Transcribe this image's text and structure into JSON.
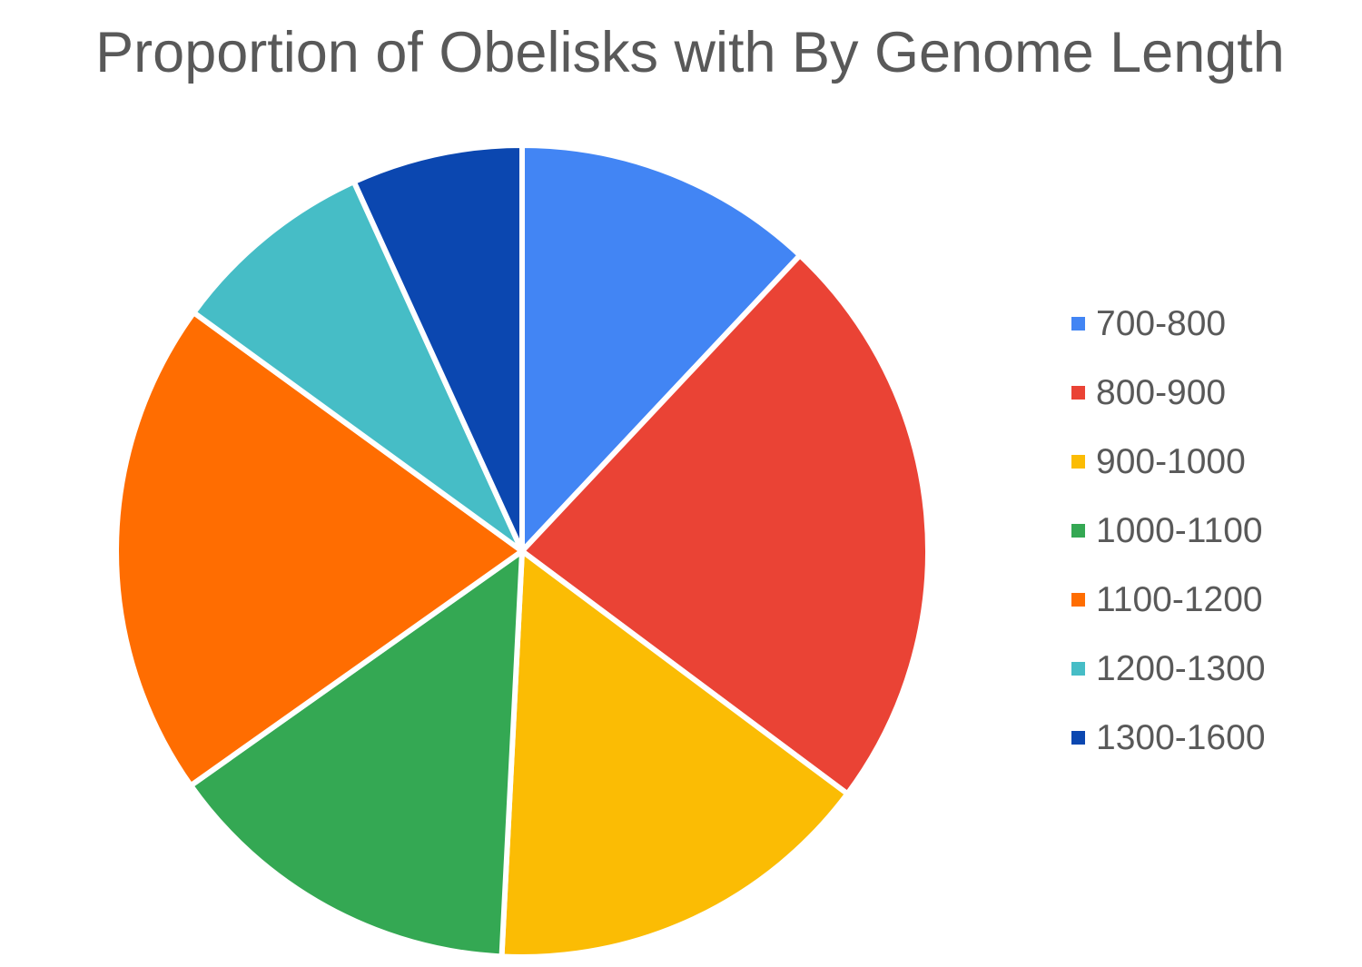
{
  "chart_data": {
    "type": "pie",
    "title": "Proportion of Obelisks with By Genome Length",
    "legend_position": "right",
    "start_angle": "12 o'clock, clockwise",
    "slices": [
      {
        "label": "700-800",
        "value": 12.0,
        "color": "#4285F4"
      },
      {
        "label": "800-900",
        "value": 23.2,
        "color": "#EA4335"
      },
      {
        "label": "900-1000",
        "value": 15.6,
        "color": "#FBBC04"
      },
      {
        "label": "1000-1100",
        "value": 14.4,
        "color": "#34A853"
      },
      {
        "label": "1100-1200",
        "value": 19.8,
        "color": "#FF6D01"
      },
      {
        "label": "1200-1300",
        "value": 8.2,
        "color": "#46BDC6"
      },
      {
        "label": "1300-1600",
        "value": 6.8,
        "color": "#0B47B0"
      }
    ]
  }
}
